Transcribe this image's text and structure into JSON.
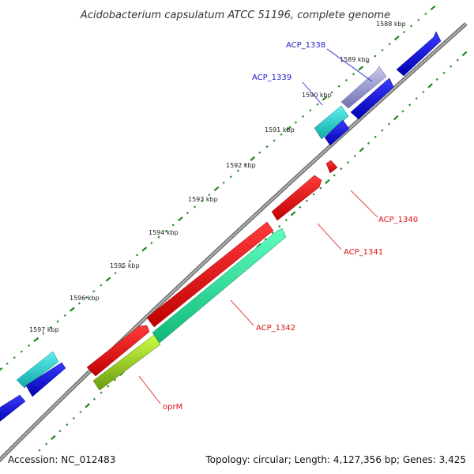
{
  "title": "Acidobacterium capsulatum ATCC 51196, complete genome",
  "footer": {
    "accession": "Accession: NC_012483",
    "topology": "Topology: circular; Length: 4,127,356 bp; Genes: 3,425"
  },
  "ticks": [
    {
      "label": "1588 kbp"
    },
    {
      "label": "1589 kbp"
    },
    {
      "label": "1590 kbp"
    },
    {
      "label": "1591 kbp"
    },
    {
      "label": "1592 kbp"
    },
    {
      "label": "1593 kbp"
    },
    {
      "label": "1594 kbp"
    },
    {
      "label": "1595 kbp"
    },
    {
      "label": "1596 kbp"
    },
    {
      "label": "1597 kbp"
    }
  ],
  "gene_labels": [
    {
      "id": "acp-1338",
      "text": "ACP_1338",
      "color": "#1a1acc"
    },
    {
      "id": "acp-1339",
      "text": "ACP_1339",
      "color": "#1a1acc"
    },
    {
      "id": "acp-1340",
      "text": "ACP_1340",
      "color": "#dd1111"
    },
    {
      "id": "acp-1341",
      "text": "ACP_1341",
      "color": "#dd1111"
    },
    {
      "id": "acp-1342",
      "text": "ACP_1342",
      "color": "#dd1111"
    },
    {
      "id": "oprm",
      "text": "oprM",
      "color": "#dd1111"
    }
  ],
  "colors": {
    "backbone": "#808080",
    "tick": "#1e8a1e",
    "forward_gene": "#1111dd",
    "reverse_gene": "#ee1111",
    "cyan_gene": "#22cccc",
    "mint_gene": "#22dd99",
    "lime_gene": "#aadd22",
    "lavender_gene": "#9999cc"
  }
}
